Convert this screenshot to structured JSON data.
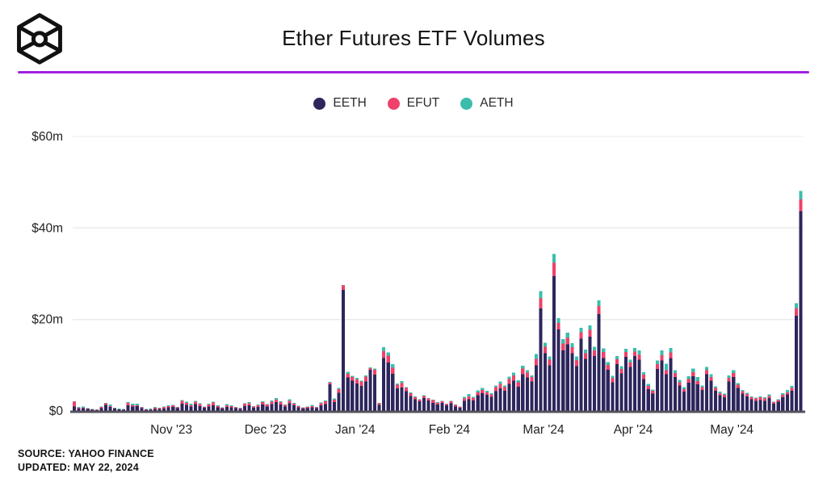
{
  "header": {
    "title": "Ether Futures ETF Volumes",
    "logo": "cube-logo",
    "accent_rule_color": "#a21fe0"
  },
  "source": {
    "line1": "SOURCE: YAHOO FINANCE",
    "line2": "UPDATED: MAY 22, 2024"
  },
  "chart_data": {
    "type": "bar",
    "stacked": true,
    "title": "Ether Futures ETF Volumes",
    "unit": "USD millions per day",
    "ylim": [
      0,
      60
    ],
    "grid": true,
    "legend_position": "top-center",
    "series": [
      {
        "name": "EETH",
        "color": "#2d265c"
      },
      {
        "name": "EFUT",
        "color": "#ef4169"
      },
      {
        "name": "AETH",
        "color": "#3cbdac"
      }
    ],
    "y_ticks": [
      {
        "value": 60,
        "label": "$60m"
      },
      {
        "value": 40,
        "label": "$40m"
      },
      {
        "value": 20,
        "label": "$20m"
      },
      {
        "value": 0,
        "label": "$0"
      }
    ],
    "x_ticks": [
      {
        "index": 22,
        "label": "Nov '23"
      },
      {
        "index": 43,
        "label": "Dec '23"
      },
      {
        "index": 63,
        "label": "Jan '24"
      },
      {
        "index": 84,
        "label": "Feb '24"
      },
      {
        "index": 105,
        "label": "Mar '24"
      },
      {
        "index": 125,
        "label": "Apr '24"
      },
      {
        "index": 147,
        "label": "May '24"
      }
    ],
    "values_order": [
      "EETH",
      "EFUT",
      "AETH"
    ],
    "values": [
      [
        1.0,
        1.0,
        0.1
      ],
      [
        0.5,
        0.25,
        0.1
      ],
      [
        0.6,
        0.15,
        0.2
      ],
      [
        0.45,
        0.1,
        0.05
      ],
      [
        0.3,
        0.1,
        0.05
      ],
      [
        0.25,
        0.05,
        0.05
      ],
      [
        0.6,
        0.3,
        0.05
      ],
      [
        1.3,
        0.4,
        0.1
      ],
      [
        0.9,
        0.15,
        0.35
      ],
      [
        0.5,
        0.15,
        0.05
      ],
      [
        0.35,
        0.1,
        0.05
      ],
      [
        0.3,
        0.1,
        0.05
      ],
      [
        1.2,
        0.6,
        0.1
      ],
      [
        1.0,
        0.2,
        0.35
      ],
      [
        1.1,
        0.15,
        0.3
      ],
      [
        0.6,
        0.25,
        0.05
      ],
      [
        0.3,
        0.1,
        0.05
      ],
      [
        0.25,
        0.2,
        0.05
      ],
      [
        0.45,
        0.35,
        0.05
      ],
      [
        0.4,
        0.2,
        0.1
      ],
      [
        0.55,
        0.35,
        0.05
      ],
      [
        0.8,
        0.3,
        0.15
      ],
      [
        0.9,
        0.3,
        0.1
      ],
      [
        0.6,
        0.2,
        0.1
      ],
      [
        1.6,
        0.6,
        0.15
      ],
      [
        1.3,
        0.5,
        0.2
      ],
      [
        1.0,
        0.25,
        0.35
      ],
      [
        1.5,
        0.5,
        0.2
      ],
      [
        1.1,
        0.4,
        0.15
      ],
      [
        0.7,
        0.2,
        0.1
      ],
      [
        1.0,
        0.4,
        0.2
      ],
      [
        1.2,
        0.7,
        0.1
      ],
      [
        0.8,
        0.3,
        0.15
      ],
      [
        0.5,
        0.2,
        0.1
      ],
      [
        0.9,
        0.3,
        0.3
      ],
      [
        0.8,
        0.25,
        0.15
      ],
      [
        0.6,
        0.2,
        0.1
      ],
      [
        0.45,
        0.15,
        0.1
      ],
      [
        1.1,
        0.45,
        0.15
      ],
      [
        1.2,
        0.5,
        0.2
      ],
      [
        0.7,
        0.25,
        0.1
      ],
      [
        0.9,
        0.3,
        0.2
      ],
      [
        1.4,
        0.5,
        0.2
      ],
      [
        1.0,
        0.4,
        0.1
      ],
      [
        1.5,
        0.55,
        0.25
      ],
      [
        1.9,
        0.6,
        0.3
      ],
      [
        1.4,
        0.5,
        0.2
      ],
      [
        1.0,
        0.3,
        0.15
      ],
      [
        1.7,
        0.5,
        0.4
      ],
      [
        1.2,
        0.35,
        0.2
      ],
      [
        0.8,
        0.25,
        0.1
      ],
      [
        0.5,
        0.2,
        0.08
      ],
      [
        0.6,
        0.25,
        0.1
      ],
      [
        0.8,
        0.3,
        0.25
      ],
      [
        0.6,
        0.2,
        0.1
      ],
      [
        1.2,
        0.5,
        0.15
      ],
      [
        1.5,
        0.6,
        0.2
      ],
      [
        5.8,
        0.4,
        0.15
      ],
      [
        1.9,
        0.6,
        0.25
      ],
      [
        4.0,
        0.8,
        0.2
      ],
      [
        26.5,
        0.9,
        0.15
      ],
      [
        7.3,
        0.8,
        0.45
      ],
      [
        6.6,
        0.8,
        0.3
      ],
      [
        6.0,
        0.9,
        0.3
      ],
      [
        5.5,
        0.9,
        0.25
      ],
      [
        6.4,
        1.1,
        0.3
      ],
      [
        9.0,
        0.35,
        0.2
      ],
      [
        7.9,
        1.1,
        0.3
      ],
      [
        1.3,
        0.35,
        0.1
      ],
      [
        11.6,
        1.5,
        0.8
      ],
      [
        10.6,
        1.5,
        0.7
      ],
      [
        8.1,
        1.3,
        0.8
      ],
      [
        4.9,
        0.8,
        0.3
      ],
      [
        5.1,
        1.0,
        0.45
      ],
      [
        4.3,
        0.7,
        0.25
      ],
      [
        3.3,
        0.55,
        0.2
      ],
      [
        2.6,
        0.4,
        0.15
      ],
      [
        2.1,
        0.35,
        0.1
      ],
      [
        2.8,
        0.5,
        0.15
      ],
      [
        2.3,
        0.4,
        0.1
      ],
      [
        1.8,
        0.55,
        0.1
      ],
      [
        1.4,
        0.4,
        0.1
      ],
      [
        1.8,
        0.3,
        0.1
      ],
      [
        1.2,
        0.3,
        0.1
      ],
      [
        1.7,
        0.4,
        0.15
      ],
      [
        1.0,
        0.3,
        0.1
      ],
      [
        0.7,
        0.2,
        0.08
      ],
      [
        2.2,
        0.5,
        0.4
      ],
      [
        2.6,
        0.6,
        0.5
      ],
      [
        2.3,
        0.5,
        0.3
      ],
      [
        3.4,
        0.7,
        0.4
      ],
      [
        3.9,
        0.7,
        0.45
      ],
      [
        3.5,
        0.6,
        0.3
      ],
      [
        3.1,
        0.5,
        0.25
      ],
      [
        4.3,
        0.9,
        0.4
      ],
      [
        4.9,
        1.0,
        0.5
      ],
      [
        4.4,
        0.8,
        0.35
      ],
      [
        5.9,
        1.1,
        0.5
      ],
      [
        6.6,
        1.2,
        0.6
      ],
      [
        5.3,
        1.0,
        0.45
      ],
      [
        8.0,
        1.3,
        0.6
      ],
      [
        7.3,
        1.1,
        0.5
      ],
      [
        6.4,
        1.0,
        0.4
      ],
      [
        10.0,
        1.4,
        1.0
      ],
      [
        22.4,
        2.2,
        1.6
      ],
      [
        12.6,
        1.4,
        0.9
      ],
      [
        10.0,
        1.2,
        0.7
      ],
      [
        29.5,
        2.9,
        1.9
      ],
      [
        17.8,
        1.4,
        1.1
      ],
      [
        13.2,
        1.5,
        1.0
      ],
      [
        14.6,
        1.4,
        1.1
      ],
      [
        12.6,
        1.3,
        0.9
      ],
      [
        9.8,
        1.3,
        0.8
      ],
      [
        15.8,
        1.4,
        1.0
      ],
      [
        11.4,
        1.2,
        0.8
      ],
      [
        16.2,
        1.5,
        1.0
      ],
      [
        12.0,
        1.2,
        0.8
      ],
      [
        21.2,
        1.7,
        1.3
      ],
      [
        11.6,
        1.3,
        0.8
      ],
      [
        9.0,
        1.1,
        0.6
      ],
      [
        6.3,
        0.9,
        0.5
      ],
      [
        10.2,
        1.1,
        0.7
      ],
      [
        8.2,
        1.0,
        0.6
      ],
      [
        11.8,
        1.1,
        0.7
      ],
      [
        9.6,
        1.0,
        0.6
      ],
      [
        12.0,
        1.0,
        0.8
      ],
      [
        11.2,
        1.1,
        0.9
      ],
      [
        7.0,
        0.9,
        0.6
      ],
      [
        4.8,
        0.7,
        0.4
      ],
      [
        3.8,
        0.6,
        0.3
      ],
      [
        9.2,
        1.0,
        0.8
      ],
      [
        11.0,
        1.2,
        1.0
      ],
      [
        8.0,
        0.9,
        1.4
      ],
      [
        11.6,
        1.2,
        1.0
      ],
      [
        7.4,
        0.9,
        0.6
      ],
      [
        5.6,
        0.7,
        0.5
      ],
      [
        4.2,
        0.6,
        0.4
      ],
      [
        6.2,
        0.8,
        0.6
      ],
      [
        7.6,
        0.9,
        0.8
      ],
      [
        5.8,
        0.7,
        0.9
      ],
      [
        4.6,
        0.6,
        0.4
      ],
      [
        8.0,
        0.9,
        0.7
      ],
      [
        6.6,
        0.8,
        0.6
      ],
      [
        4.4,
        0.6,
        0.4
      ],
      [
        3.4,
        0.5,
        0.3
      ],
      [
        3.0,
        0.5,
        0.3
      ],
      [
        6.4,
        0.8,
        0.6
      ],
      [
        7.4,
        0.9,
        0.6
      ],
      [
        5.0,
        0.7,
        0.4
      ],
      [
        3.8,
        0.5,
        0.3
      ],
      [
        3.2,
        0.5,
        0.25
      ],
      [
        2.6,
        0.4,
        0.2
      ],
      [
        2.2,
        0.5,
        0.2
      ],
      [
        2.4,
        0.6,
        0.2
      ],
      [
        2.2,
        0.5,
        0.3
      ],
      [
        2.8,
        0.5,
        0.3
      ],
      [
        1.6,
        0.3,
        0.15
      ],
      [
        2.0,
        0.4,
        0.2
      ],
      [
        3.0,
        0.5,
        0.4
      ],
      [
        3.6,
        0.5,
        0.5
      ],
      [
        4.4,
        0.6,
        0.5
      ],
      [
        20.8,
        1.6,
        1.2
      ],
      [
        43.7,
        2.5,
        1.9
      ]
    ]
  },
  "style": {
    "grid_color": "#ebebeb",
    "baseline_color": "#55515b",
    "tick_label_color": "#232323"
  }
}
